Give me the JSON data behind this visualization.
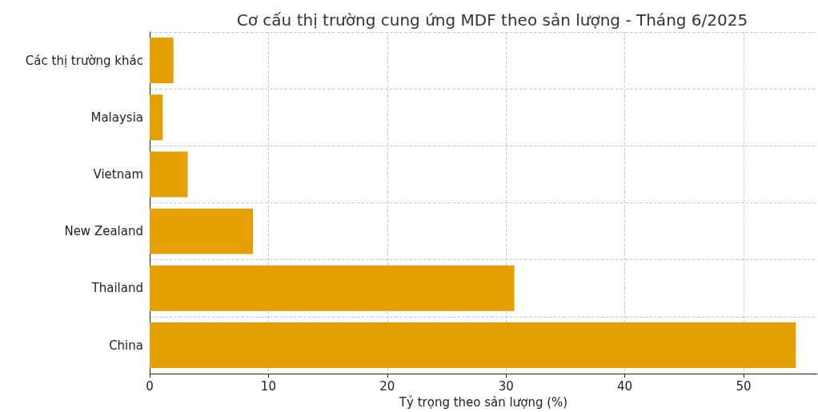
{
  "chart_data": {
    "type": "bar",
    "orientation": "horizontal",
    "title": "Cơ cấu thị trường cung ứng MDF theo sản lượng - Tháng 6/2025",
    "xlabel": "Tỷ trọng theo sản lượng (%)",
    "categories": [
      "Các thị trường khác",
      "Malaysia",
      "Vietnam",
      "New Zealand",
      "Thailand",
      "China"
    ],
    "values": [
      2.0,
      1.1,
      3.2,
      8.7,
      30.7,
      54.4
    ],
    "color": "#e3a000",
    "xlim": [
      0,
      56.2
    ],
    "xticks": [
      0,
      10,
      20,
      30,
      40,
      50
    ],
    "grid": true,
    "line_style": "dashed"
  }
}
